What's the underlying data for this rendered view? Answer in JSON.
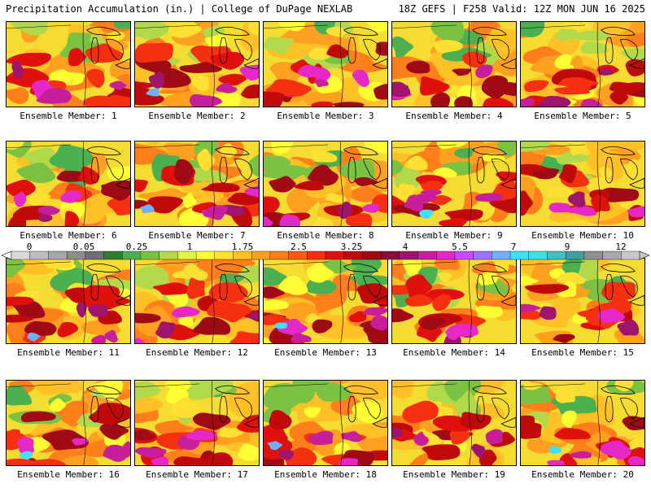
{
  "header": {
    "left_title": "Precipitation Accumulation (in.) | College of DuPage NEXLAB",
    "right_title": "18Z GEFS | F258 Valid: 12Z MON JUN 16 2025"
  },
  "colorbar": {
    "tick_labels": [
      "0",
      "0.05",
      "0.25",
      "1",
      "1.75",
      "2.5",
      "3.25",
      "4",
      "5.5",
      "7",
      "9",
      "12"
    ],
    "colors": [
      "#d9d9d9",
      "#bdbdbd",
      "#a8a8a8",
      "#8c8c8c",
      "#707070",
      "#2e7d32",
      "#4caf50",
      "#7cc242",
      "#b2d94a",
      "#e5f24a",
      "#ffff33",
      "#ffe033",
      "#ffc125",
      "#ffa020",
      "#ff7f1a",
      "#ff5a14",
      "#f53010",
      "#e0100c",
      "#c00a0a",
      "#a00a14",
      "#8c0a3c",
      "#a0146e",
      "#c81e9b",
      "#e628c8",
      "#c84bff",
      "#a070ff",
      "#70b0ff",
      "#40e0ff",
      "#40e0e0",
      "#40c0c0",
      "#40a0a0",
      "#909090",
      "#a8a8a8",
      "#c8c8c8"
    ]
  },
  "map_palette": {
    "base": "#f5dc32",
    "greens": [
      "#4caf50",
      "#7cc242",
      "#b2d94a"
    ],
    "yellows": [
      "#ffff33",
      "#ffe033"
    ],
    "oranges": [
      "#ffc125",
      "#ffa020",
      "#ff7f1a"
    ],
    "reds": [
      "#f53010",
      "#e0100c",
      "#c00a0a",
      "#a00a14"
    ],
    "purples": [
      "#a0146e",
      "#c81e9b",
      "#e628c8"
    ],
    "cyans": [
      "#40e0ff",
      "#70b0ff"
    ],
    "grays": [
      "#909090"
    ]
  },
  "panels": [
    {
      "label": "Ensemble Member: 1"
    },
    {
      "label": "Ensemble Member: 2"
    },
    {
      "label": "Ensemble Member: 3"
    },
    {
      "label": "Ensemble Member: 4"
    },
    {
      "label": "Ensemble Member: 5"
    },
    {
      "label": "Ensemble Member: 6"
    },
    {
      "label": "Ensemble Member: 7"
    },
    {
      "label": "Ensemble Member: 8"
    },
    {
      "label": "Ensemble Member: 9"
    },
    {
      "label": "Ensemble Member: 10"
    },
    {
      "label": "Ensemble Member: 11"
    },
    {
      "label": "Ensemble Member: 12"
    },
    {
      "label": "Ensemble Member: 13"
    },
    {
      "label": "Ensemble Member: 14"
    },
    {
      "label": "Ensemble Member: 15"
    },
    {
      "label": "Ensemble Member: 16"
    },
    {
      "label": "Ensemble Member: 17"
    },
    {
      "label": "Ensemble Member: 18"
    },
    {
      "label": "Ensemble Member: 19"
    },
    {
      "label": "Ensemble Member: 20"
    }
  ]
}
